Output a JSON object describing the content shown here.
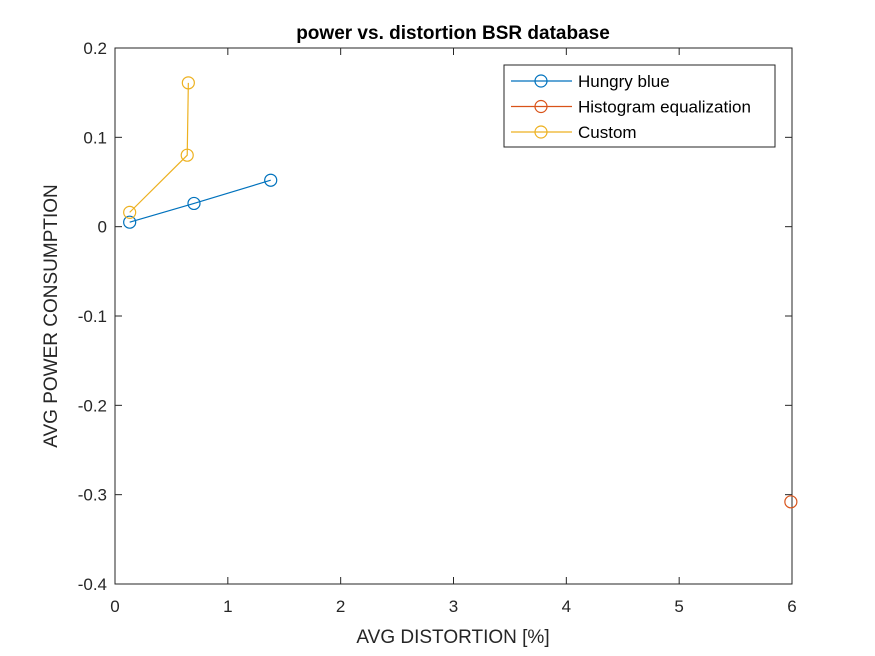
{
  "chart_data": {
    "type": "line",
    "title": "power vs. distortion BSR database",
    "xlabel": "AVG DISTORTION [%]",
    "ylabel": "AVG POWER CONSUMPTION",
    "xlim": [
      0,
      6
    ],
    "ylim": [
      -0.4,
      0.2
    ],
    "xticks": [
      0,
      1,
      2,
      3,
      4,
      5,
      6
    ],
    "xtick_labels": [
      "0",
      "1",
      "2",
      "3",
      "4",
      "5",
      "6"
    ],
    "yticks": [
      -0.4,
      -0.3,
      -0.2,
      -0.1,
      0,
      0.1,
      0.2
    ],
    "ytick_labels": [
      "-0.4",
      "-0.3",
      "-0.2",
      "-0.1",
      "0",
      "0.1",
      "0.2"
    ],
    "grid": false,
    "legend_position": "top-right",
    "marker": "circle-open",
    "series": [
      {
        "name": "Hungry blue",
        "color": "#0072BD",
        "x": [
          0.13,
          0.7,
          1.38
        ],
        "y": [
          0.005,
          0.026,
          0.052
        ]
      },
      {
        "name": "Histogram equalization",
        "color": "#D95319",
        "x": [
          5.99
        ],
        "y": [
          -0.308
        ]
      },
      {
        "name": "Custom",
        "color": "#EDB120",
        "x": [
          0.13,
          0.64,
          0.65
        ],
        "y": [
          0.016,
          0.08,
          0.161
        ]
      }
    ]
  }
}
